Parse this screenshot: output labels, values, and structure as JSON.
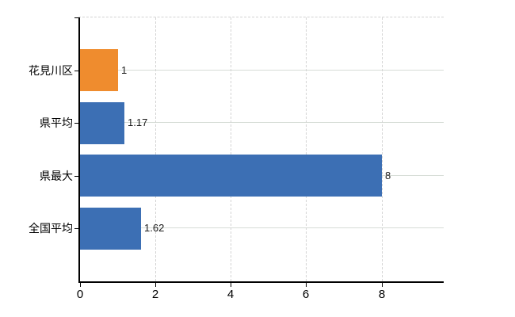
{
  "chart_data": {
    "type": "bar",
    "orientation": "horizontal",
    "title": "",
    "xlabel": "",
    "ylabel": "",
    "legend": "none",
    "categories": [
      "花見川区",
      "県平均",
      "県最大",
      "全国平均"
    ],
    "values": [
      1,
      1.17,
      8,
      1.62
    ],
    "value_labels": [
      "1",
      "1.17",
      "8",
      "1.62"
    ],
    "bar_colors": [
      "#ef8c2e",
      "#3c6fb4",
      "#3c6fb4",
      "#3c6fb4"
    ],
    "xticks": [
      0,
      2,
      4,
      6,
      8
    ],
    "xtick_labels": [
      "0",
      "2",
      "4",
      "6",
      "8"
    ],
    "xlim": [
      0,
      9.65
    ],
    "grid": {
      "horizontal": "solid",
      "vertical": "dashed",
      "top_border": "dashed"
    },
    "colors": {
      "bar_orange": "#ef8c2e",
      "bar_blue": "#3c6fb4",
      "axis": "#000000",
      "grid_horizontal": "#d6dcd6",
      "grid_vertical": "#d4d4d4",
      "top_border": "#d2d2d2",
      "background": "#ffffff"
    }
  }
}
